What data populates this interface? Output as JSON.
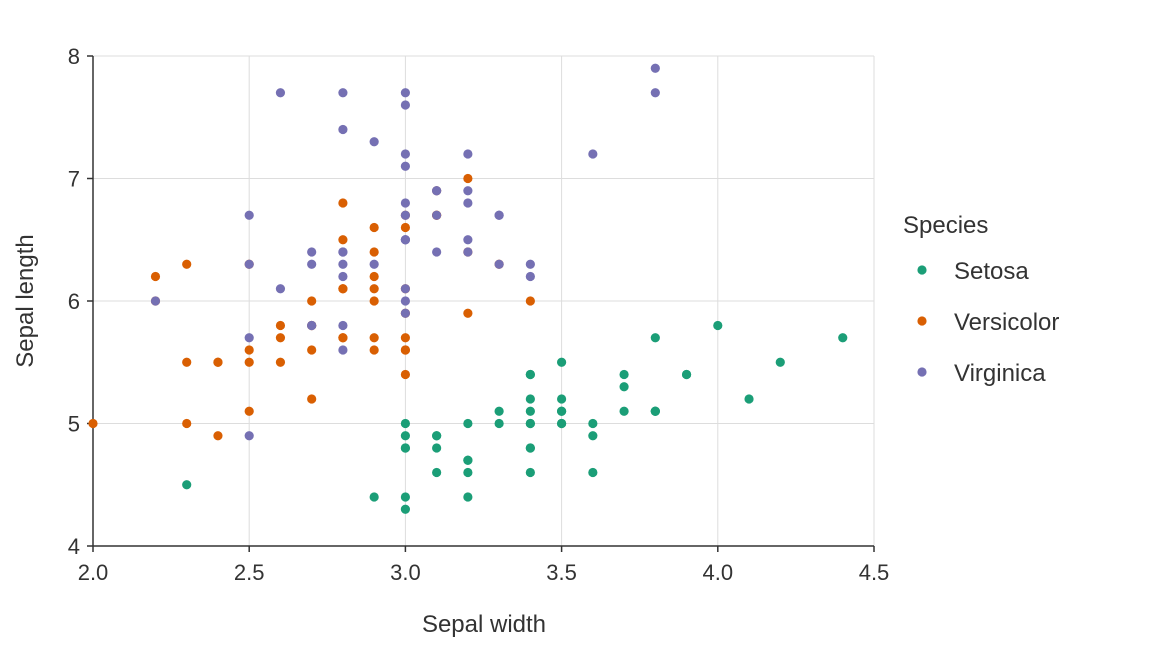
{
  "chart_data": {
    "type": "scatter",
    "title": "",
    "xlabel": "Sepal width",
    "ylabel": "Sepal length",
    "xlim": [
      2.0,
      4.5
    ],
    "ylim": [
      4,
      8
    ],
    "x_ticks": [
      "2.0",
      "2.5",
      "3.0",
      "3.5",
      "4.0",
      "4.5"
    ],
    "y_ticks": [
      "4",
      "5",
      "6",
      "7",
      "8"
    ],
    "grid": true,
    "legend": {
      "title": "Species",
      "placement": "right"
    },
    "series": [
      {
        "name": "Setosa",
        "color": "#1b9e77",
        "points": [
          [
            3.5,
            5.1
          ],
          [
            3.0,
            4.9
          ],
          [
            3.2,
            4.7
          ],
          [
            3.1,
            4.6
          ],
          [
            3.6,
            5.0
          ],
          [
            3.9,
            5.4
          ],
          [
            3.4,
            4.6
          ],
          [
            3.4,
            5.0
          ],
          [
            2.9,
            4.4
          ],
          [
            3.1,
            4.9
          ],
          [
            3.7,
            5.4
          ],
          [
            3.4,
            4.8
          ],
          [
            3.0,
            4.8
          ],
          [
            3.0,
            4.3
          ],
          [
            4.0,
            5.8
          ],
          [
            4.4,
            5.7
          ],
          [
            3.9,
            5.4
          ],
          [
            3.5,
            5.1
          ],
          [
            3.8,
            5.7
          ],
          [
            3.8,
            5.1
          ],
          [
            3.4,
            5.4
          ],
          [
            3.7,
            5.1
          ],
          [
            3.6,
            4.6
          ],
          [
            3.3,
            5.1
          ],
          [
            3.4,
            4.8
          ],
          [
            3.0,
            5.0
          ],
          [
            3.4,
            5.0
          ],
          [
            3.5,
            5.2
          ],
          [
            3.4,
            5.2
          ],
          [
            3.2,
            4.7
          ],
          [
            3.1,
            4.8
          ],
          [
            3.4,
            5.4
          ],
          [
            4.1,
            5.2
          ],
          [
            4.2,
            5.5
          ],
          [
            3.1,
            4.9
          ],
          [
            3.2,
            5.0
          ],
          [
            3.5,
            5.5
          ],
          [
            3.6,
            4.9
          ],
          [
            3.0,
            4.4
          ],
          [
            3.4,
            5.1
          ],
          [
            3.5,
            5.0
          ],
          [
            2.3,
            4.5
          ],
          [
            3.2,
            4.4
          ],
          [
            3.5,
            5.0
          ],
          [
            3.8,
            5.1
          ],
          [
            3.0,
            4.8
          ],
          [
            3.8,
            5.1
          ],
          [
            3.2,
            4.6
          ],
          [
            3.7,
            5.3
          ],
          [
            3.3,
            5.0
          ]
        ]
      },
      {
        "name": "Versicolor",
        "color": "#d95f02",
        "points": [
          [
            3.2,
            7.0
          ],
          [
            3.2,
            6.4
          ],
          [
            3.1,
            6.9
          ],
          [
            2.3,
            5.5
          ],
          [
            2.8,
            6.5
          ],
          [
            2.8,
            5.7
          ],
          [
            3.3,
            6.3
          ],
          [
            2.4,
            4.9
          ],
          [
            2.9,
            6.6
          ],
          [
            2.7,
            5.2
          ],
          [
            2.0,
            5.0
          ],
          [
            3.0,
            5.9
          ],
          [
            2.2,
            6.0
          ],
          [
            2.9,
            6.1
          ],
          [
            2.9,
            5.6
          ],
          [
            3.1,
            6.7
          ],
          [
            3.0,
            5.6
          ],
          [
            2.7,
            5.8
          ],
          [
            2.2,
            6.2
          ],
          [
            2.5,
            5.6
          ],
          [
            3.2,
            5.9
          ],
          [
            2.8,
            6.1
          ],
          [
            2.5,
            6.3
          ],
          [
            2.8,
            6.1
          ],
          [
            2.9,
            6.4
          ],
          [
            3.0,
            6.6
          ],
          [
            2.8,
            6.8
          ],
          [
            3.0,
            6.7
          ],
          [
            2.9,
            6.0
          ],
          [
            2.6,
            5.7
          ],
          [
            2.4,
            5.5
          ],
          [
            2.4,
            5.5
          ],
          [
            2.7,
            5.8
          ],
          [
            2.7,
            6.0
          ],
          [
            3.0,
            5.4
          ],
          [
            3.4,
            6.0
          ],
          [
            3.1,
            6.7
          ],
          [
            2.3,
            6.3
          ],
          [
            3.0,
            5.6
          ],
          [
            2.5,
            5.5
          ],
          [
            2.6,
            5.5
          ],
          [
            3.0,
            6.1
          ],
          [
            2.6,
            5.8
          ],
          [
            2.3,
            5.0
          ],
          [
            2.7,
            5.6
          ],
          [
            3.0,
            5.7
          ],
          [
            2.9,
            5.7
          ],
          [
            2.9,
            6.2
          ],
          [
            2.5,
            5.1
          ],
          [
            2.8,
            5.7
          ]
        ]
      },
      {
        "name": "Virginica",
        "color": "#7570b3",
        "points": [
          [
            3.3,
            6.3
          ],
          [
            2.7,
            5.8
          ],
          [
            3.0,
            7.1
          ],
          [
            2.9,
            6.3
          ],
          [
            3.0,
            6.5
          ],
          [
            3.0,
            7.6
          ],
          [
            2.5,
            4.9
          ],
          [
            2.9,
            7.3
          ],
          [
            2.5,
            6.7
          ],
          [
            3.6,
            7.2
          ],
          [
            3.2,
            6.5
          ],
          [
            2.7,
            6.4
          ],
          [
            3.0,
            6.8
          ],
          [
            2.5,
            5.7
          ],
          [
            2.8,
            5.8
          ],
          [
            3.2,
            6.4
          ],
          [
            3.0,
            6.5
          ],
          [
            3.8,
            7.7
          ],
          [
            2.6,
            7.7
          ],
          [
            2.2,
            6.0
          ],
          [
            3.2,
            6.9
          ],
          [
            2.8,
            5.6
          ],
          [
            2.8,
            7.7
          ],
          [
            2.7,
            6.3
          ],
          [
            3.3,
            6.7
          ],
          [
            3.2,
            7.2
          ],
          [
            2.8,
            6.2
          ],
          [
            3.0,
            6.1
          ],
          [
            2.8,
            6.4
          ],
          [
            3.0,
            7.2
          ],
          [
            2.8,
            7.4
          ],
          [
            3.8,
            7.9
          ],
          [
            2.8,
            6.4
          ],
          [
            2.8,
            6.3
          ],
          [
            2.6,
            6.1
          ],
          [
            3.0,
            7.7
          ],
          [
            3.4,
            6.3
          ],
          [
            3.1,
            6.4
          ],
          [
            3.0,
            6.0
          ],
          [
            3.1,
            6.9
          ],
          [
            3.1,
            6.7
          ],
          [
            3.1,
            6.9
          ],
          [
            2.7,
            5.8
          ],
          [
            3.2,
            6.8
          ],
          [
            3.3,
            6.7
          ],
          [
            3.0,
            6.7
          ],
          [
            2.5,
            6.3
          ],
          [
            3.0,
            6.5
          ],
          [
            3.4,
            6.2
          ],
          [
            3.0,
            5.9
          ]
        ]
      }
    ]
  }
}
